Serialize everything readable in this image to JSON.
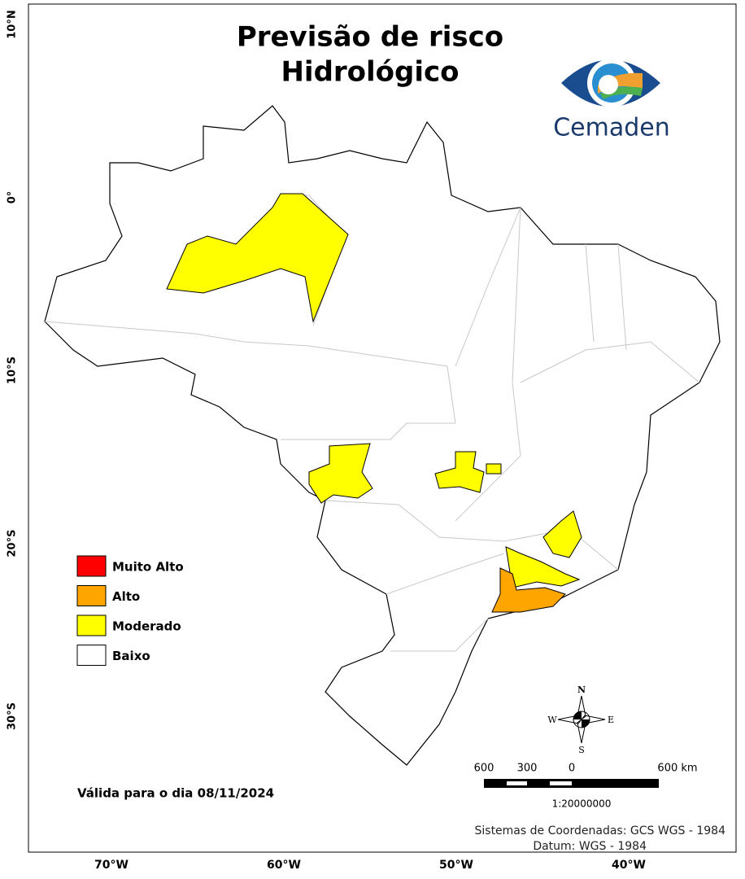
{
  "title": [
    "Previsão de risco",
    "Hidrológico"
  ],
  "logo": "Cemaden",
  "legend": [
    {
      "label": "Muito Alto",
      "color": "#ff0000"
    },
    {
      "label": "Alto",
      "color": "#ffa500"
    },
    {
      "label": "Moderado",
      "color": "#ffff00"
    },
    {
      "label": "Baixo",
      "color": "#ffffff"
    }
  ],
  "valid_date": "Válida para o dia 08/11/2024",
  "lat_labels": [
    "10°N",
    "0°",
    "10°S",
    "20°S",
    "30°S"
  ],
  "lon_labels": [
    "70°W",
    "60°W",
    "50°W",
    "40°W"
  ],
  "scale_bar": {
    "labels": [
      "600",
      "300",
      "0",
      "600 km"
    ],
    "ratio": "1:20000000"
  },
  "compass": {
    "n": "N",
    "e": "E",
    "s": "S",
    "w": "W"
  },
  "footer": [
    "Sistemas de Coordenadas: GCS WGS - 1984",
    "Datum: WGS - 1984"
  ]
}
